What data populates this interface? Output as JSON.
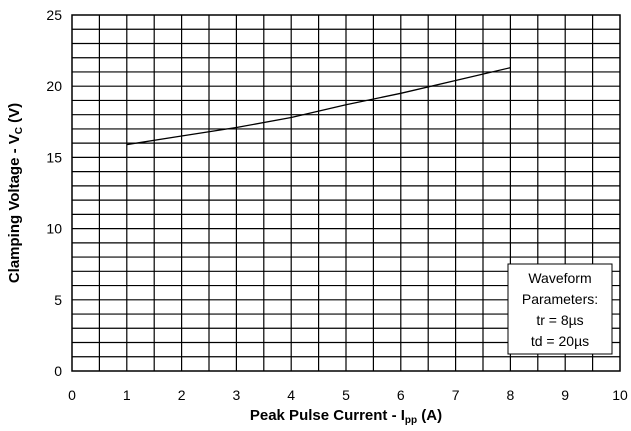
{
  "chart_data": {
    "type": "line",
    "title": "",
    "xlabel": {
      "main": "Peak Pulse Current - I",
      "sub": "pp",
      "unit": " (A)"
    },
    "ylabel": {
      "main": "Clamping Voltage - V",
      "sub": "C",
      "unit": " (V)"
    },
    "xlim": [
      0,
      10
    ],
    "ylim": [
      0,
      25
    ],
    "x_ticks": [
      "0",
      "1",
      "2",
      "3",
      "4",
      "5",
      "6",
      "7",
      "8",
      "9",
      "10"
    ],
    "y_ticks": [
      "0",
      "5",
      "10",
      "15",
      "20",
      "25"
    ],
    "grid": true,
    "x_minor_step": 0.5,
    "y_minor_step": 1,
    "series": [
      {
        "x": [
          1,
          2,
          3,
          4,
          5,
          6,
          7,
          8
        ],
        "y": [
          15.9,
          16.5,
          17.1,
          17.8,
          18.7,
          19.5,
          20.4,
          21.3
        ]
      }
    ],
    "annotation": {
      "position": "bottom-right",
      "lines": [
        "Waveform",
        "Parameters:",
        "tr = 8µs",
        "td = 20µs"
      ]
    },
    "colors": {
      "line": "#000000",
      "grid": "#000000",
      "background": "#ffffff"
    }
  }
}
